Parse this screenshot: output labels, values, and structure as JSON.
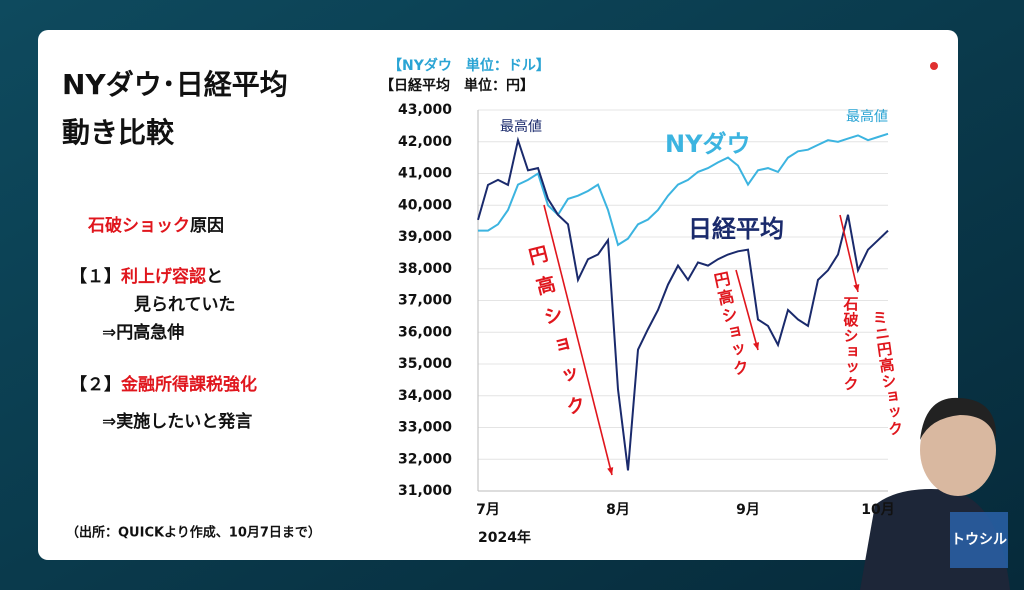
{
  "slide": {
    "title": [
      "NYダウ･日経平均",
      "動き比較"
    ],
    "cause": [
      {
        "text": "石破ショック",
        "red": true
      },
      {
        "text": "原因",
        "red": false
      }
    ],
    "item1": [
      {
        "text": "【１】",
        "red": false
      },
      {
        "text": "利上げ容認",
        "red": true
      },
      {
        "text": "と",
        "red": false
      }
    ],
    "item1_b": "見られていた",
    "item1_c": "⇒円高急伸",
    "item2": [
      {
        "text": "【２】",
        "red": false
      },
      {
        "text": "金融所得課税強化",
        "red": true
      }
    ],
    "item2_b": "⇒実施したいと発言",
    "source": "（出所：QUICKより作成、10月7日まで）",
    "logo": "トウシル"
  },
  "chart_data": {
    "type": "line",
    "axis_titles": [
      "【NYダウ　単位：ドル】",
      "【日経平均　単位：円】"
    ],
    "categories": [
      null,
      "7月",
      null,
      null,
      null,
      null,
      null,
      null,
      null,
      null,
      null,
      null,
      null,
      null,
      "8月",
      null,
      null,
      null,
      null,
      null,
      null,
      null,
      null,
      null,
      null,
      null,
      null,
      "9月",
      null,
      null,
      null,
      null,
      null,
      null,
      null,
      null,
      null,
      null,
      null,
      null,
      "10月",
      null
    ],
    "xlabel": "2024年",
    "series": [
      {
        "name": "NYダウ",
        "color": "#3cb4e0",
        "values": [
          39200,
          39200,
          39400,
          39850,
          40650,
          40800,
          41000,
          40000,
          39700,
          40200,
          40300,
          40450,
          40650,
          39850,
          38750,
          38950,
          39400,
          39550,
          39850,
          40300,
          40650,
          40800,
          41050,
          41170,
          41350,
          41500,
          41250,
          40650,
          41100,
          41170,
          41050,
          41500,
          41700,
          41750,
          41900,
          42050,
          42000,
          42100,
          42200,
          42050,
          42150,
          42250
        ]
      },
      {
        "name": "日経平均",
        "color": "#1a2a6c",
        "values": [
          39540,
          40640,
          40800,
          40640,
          42050,
          41100,
          41170,
          40200,
          39700,
          39400,
          37650,
          38300,
          38450,
          38900,
          34200,
          31650,
          35450,
          36100,
          36700,
          37500,
          38100,
          37650,
          38200,
          38100,
          38300,
          38450,
          38550,
          38600,
          36400,
          36200,
          35600,
          36700,
          36400,
          36200,
          37650,
          37950,
          38450,
          39700,
          37950,
          38600,
          38900,
          39200
        ]
      }
    ],
    "ylim": [
      31000,
      43000
    ],
    "yticks": [
      {
        "value": 31000,
        "label": "31,000"
      },
      {
        "value": 32000,
        "label": "32,000"
      },
      {
        "value": 33000,
        "label": "33,000"
      },
      {
        "value": 34000,
        "label": "34,000"
      },
      {
        "value": 35000,
        "label": "35,000"
      },
      {
        "value": 36000,
        "label": "36,000"
      },
      {
        "value": 37000,
        "label": "37,000"
      },
      {
        "value": 38000,
        "label": "38,000"
      },
      {
        "value": 39000,
        "label": "39,000"
      },
      {
        "value": 40000,
        "label": "40,000"
      },
      {
        "value": 41000,
        "label": "41,000"
      },
      {
        "value": 42000,
        "label": "42,000"
      },
      {
        "value": 43000,
        "label": "43,000"
      }
    ],
    "grid": true,
    "annotations": [
      "最高値",
      "最高値",
      "円高ショック",
      "円高ショック",
      "石破ショック",
      "ミニ円高ショック"
    ]
  }
}
